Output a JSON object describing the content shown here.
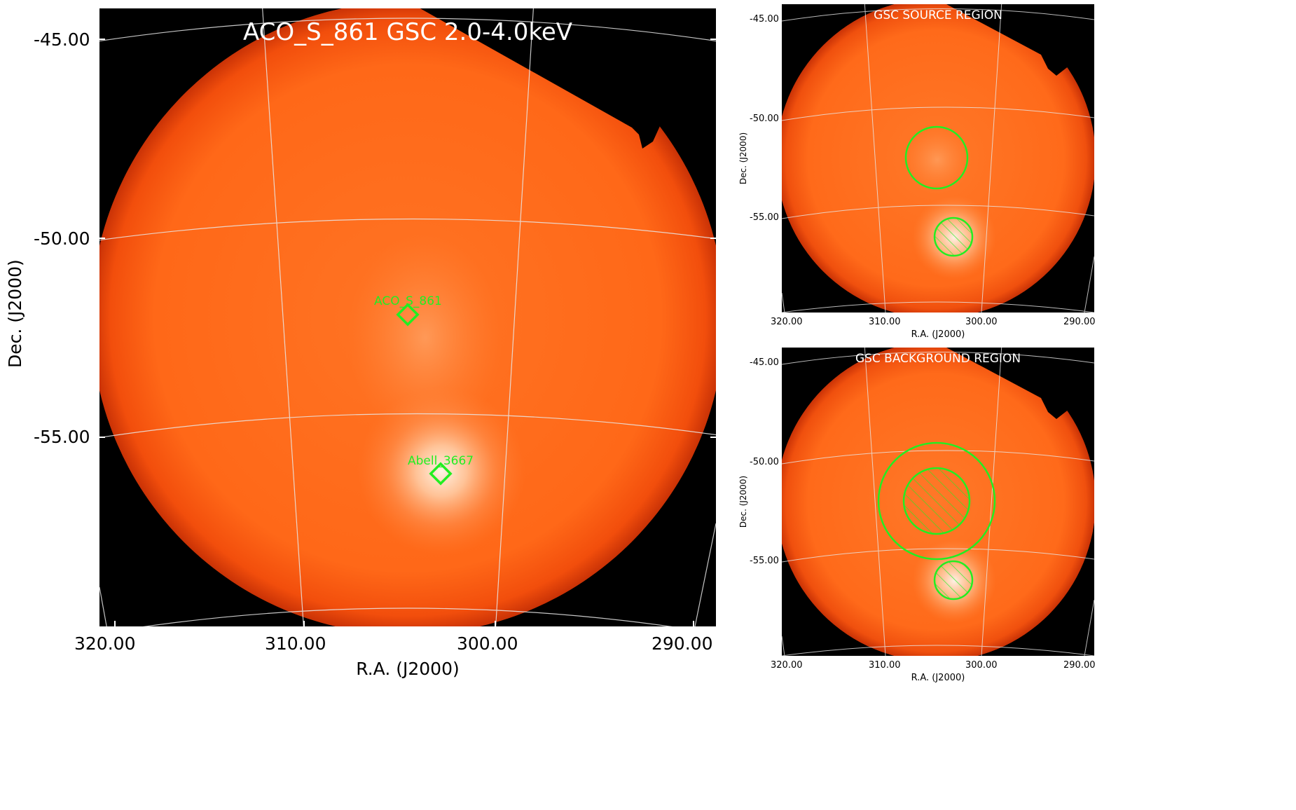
{
  "panels": {
    "main": {
      "title": "ACO_S_861 GSC 2.0-4.0keV",
      "xlabel": "R.A. (J2000)",
      "ylabel": "Dec. (J2000)",
      "xticks": [
        "320.00",
        "310.00",
        "300.00",
        "290.00"
      ],
      "yticks": [
        "-45.00",
        "-50.00",
        "-55.00"
      ],
      "markers": [
        {
          "label": "ACO_S_861",
          "ra": 304.5,
          "dec": -52.0
        },
        {
          "label": "Abell_3667",
          "ra": 302.9,
          "dec": -56.0
        }
      ]
    },
    "source": {
      "title": "GSC SOURCE REGION",
      "xlabel": "R.A. (J2000)",
      "ylabel": "Dec. (J2000)",
      "xticks": [
        "320.00",
        "310.00",
        "300.00",
        "290.00"
      ],
      "yticks": [
        "-45.00",
        "-50.00",
        "-55.00"
      ]
    },
    "background": {
      "title": "GSC BACKGROUND REGION",
      "xlabel": "R.A. (J2000)",
      "ylabel": "Dec. (J2000)",
      "xticks": [
        "320.00",
        "310.00",
        "300.00",
        "290.00"
      ],
      "yticks": [
        "-45.00",
        "-50.00",
        "-55.00"
      ]
    }
  },
  "colors": {
    "disk": "#ff6a1a",
    "disk_edge": "#d83a08",
    "marker": "#22ee22",
    "grid": "#e8e8e8"
  }
}
